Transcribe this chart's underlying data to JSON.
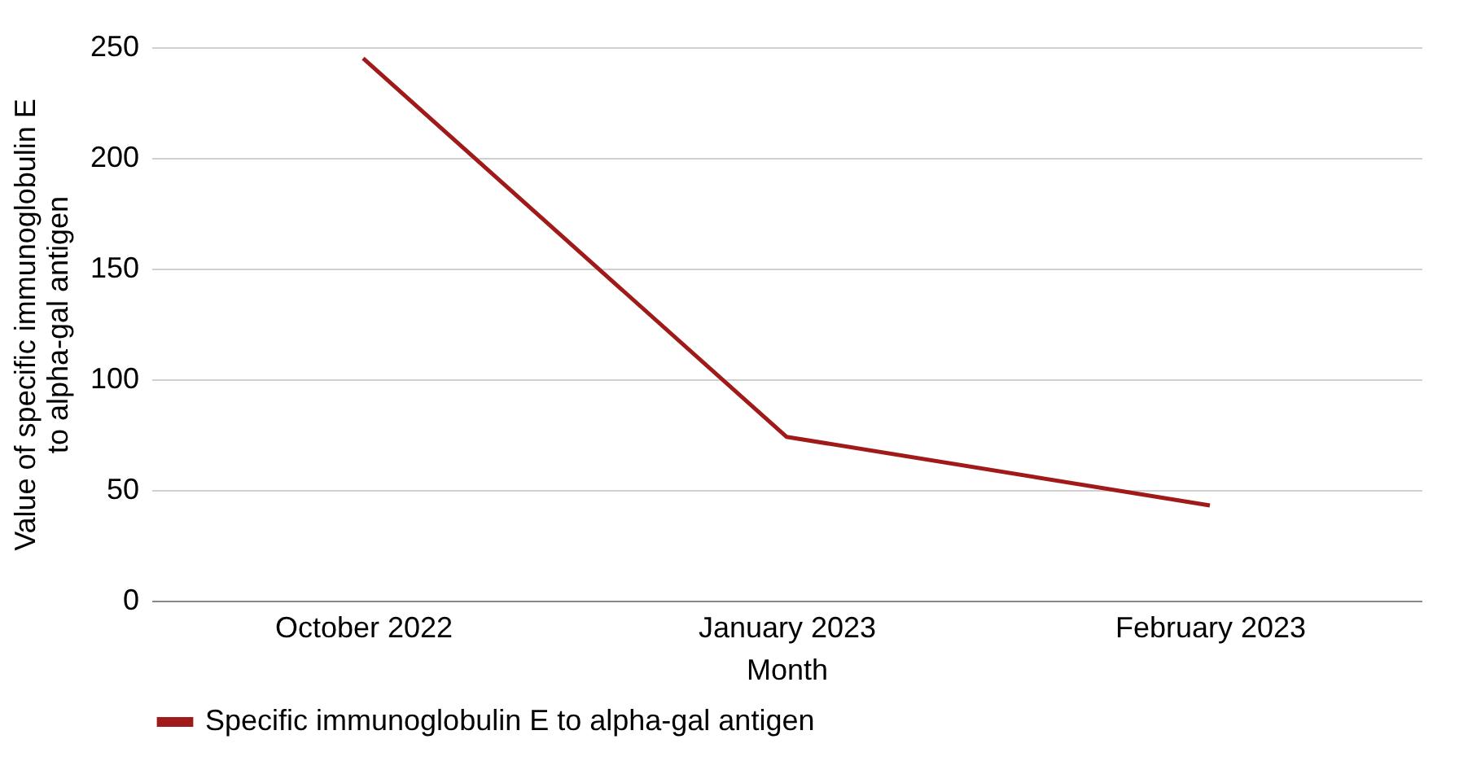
{
  "chart_data": {
    "type": "line",
    "xlabel": "Month",
    "ylabel": "Value of specific immunoglobulin E to alpha-gal antigen",
    "categories": [
      "October 2022",
      "January 2023",
      "February 2023"
    ],
    "series": [
      {
        "name": "Specific immunoglobulin E to alpha-gal antigen",
        "color": "#a01a1a",
        "values": [
          245,
          74,
          43
        ]
      }
    ],
    "ylim": [
      0,
      250
    ],
    "yticks": [
      0,
      50,
      100,
      150,
      200,
      250
    ],
    "grid": "y",
    "legend": "bottom",
    "marker": "none",
    "line_style": "solid"
  }
}
